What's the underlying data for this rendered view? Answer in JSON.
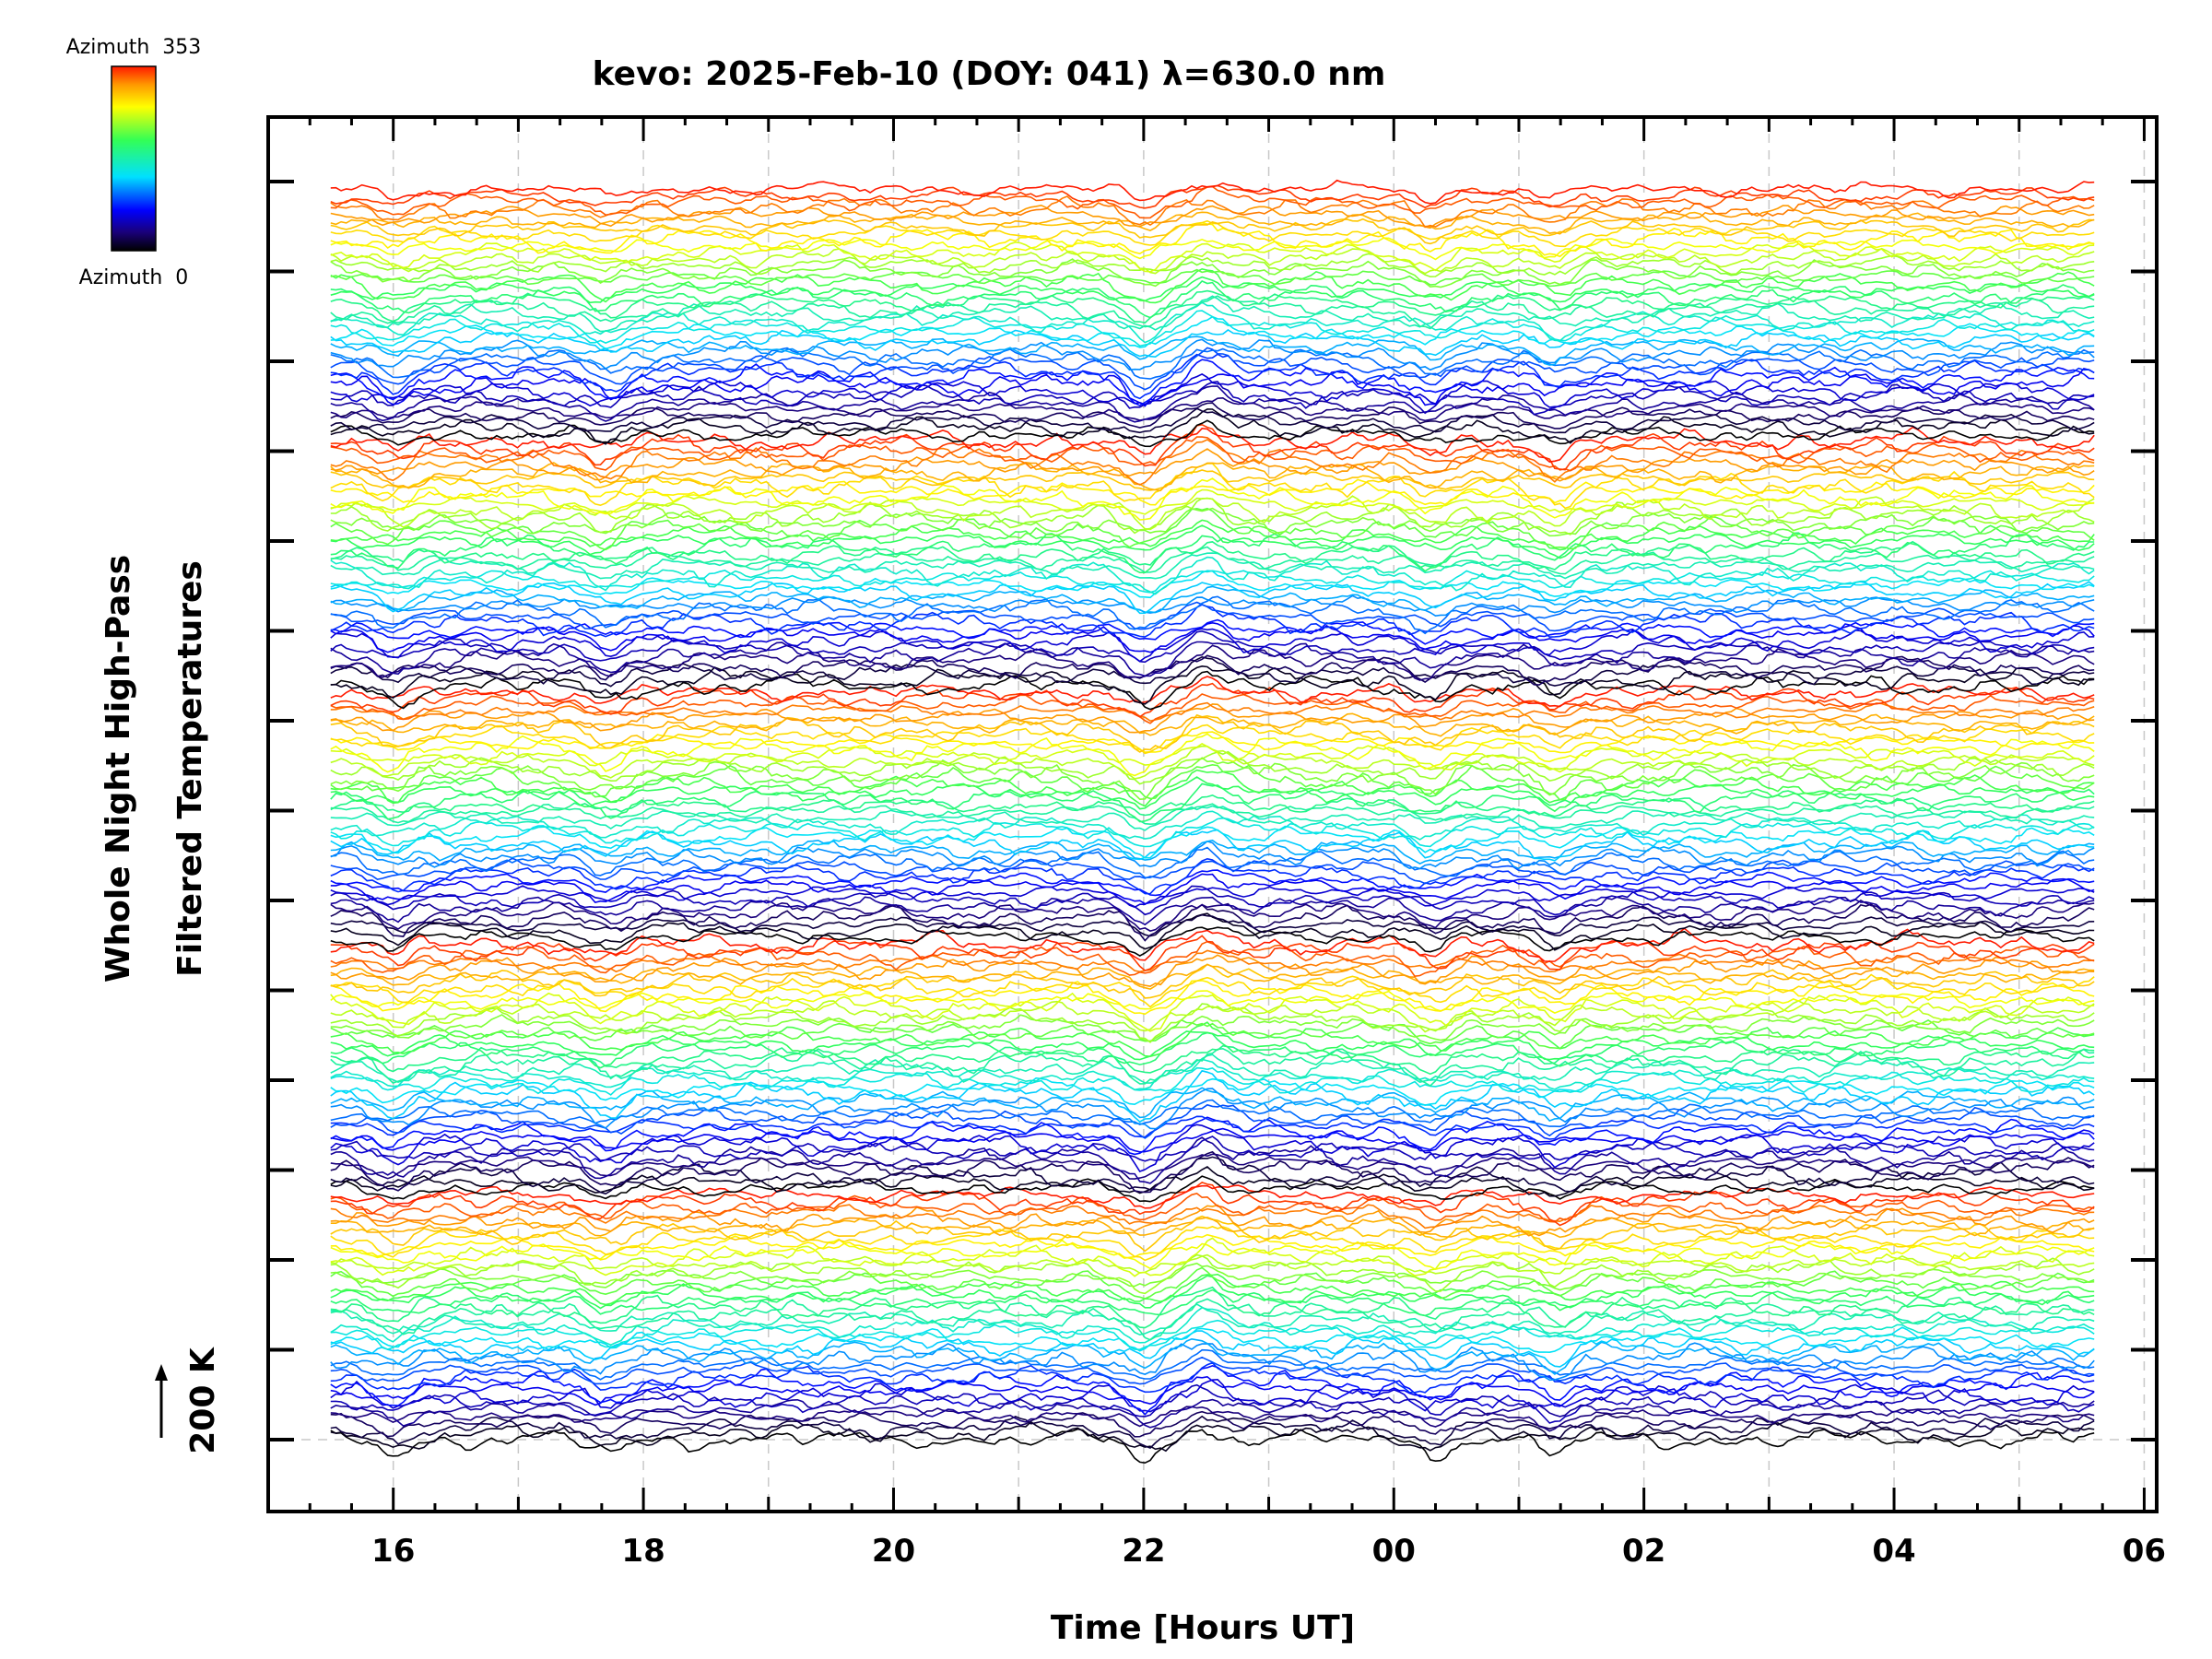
{
  "chart_data": {
    "type": "line",
    "title": "kevo: 2025-Feb-10 (DOY: 041) λ=630.0 nm",
    "xlabel": "Time [Hours UT]",
    "ylabel": [
      "Whole Night High-Pass",
      "Filtered Temperatures"
    ],
    "x_ticks": [
      "16",
      "18",
      "20",
      "22",
      "00",
      "02",
      "04",
      "06"
    ],
    "x_range_hours_ut": [
      15.0,
      30.1
    ],
    "data_start_hours_ut": 15.5,
    "data_end_hours_ut": 29.6,
    "scale_label": "200 K",
    "colorbar": {
      "top_label": "Azimuth  353",
      "bottom_label": "Azimuth  0",
      "min": 0,
      "max": 353,
      "colormap": "rainbow"
    },
    "grid": true,
    "num_traces": 200,
    "common_dips_hours_ut": [
      16.0,
      17.7,
      22.0,
      24.3,
      25.3
    ],
    "common_peaks_hours_ut": [
      22.5
    ]
  }
}
